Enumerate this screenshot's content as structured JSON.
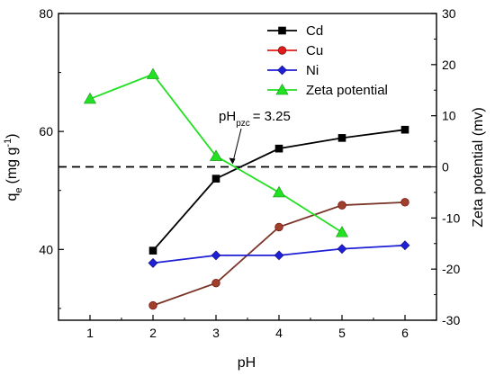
{
  "chart_data": {
    "type": "line",
    "x": [
      1,
      2,
      3,
      4,
      5,
      6
    ],
    "xlabel": "pH",
    "xlim": [
      0.5,
      6.5
    ],
    "ylabel_left": "q",
    "ylabel_left_sub": "e",
    "ylabel_left_unit": "(mg g",
    "ylabel_left_unit_sup": "-1",
    "ylabel_left_unit_end": ")",
    "ylim_left": [
      28,
      80
    ],
    "yticks_left": [
      40,
      60,
      80
    ],
    "ylabel_right": "Zeta potential (mv)",
    "ylim_right": [
      -30,
      30
    ],
    "yticks_right": [
      -30,
      -20,
      -10,
      0,
      10,
      20,
      30
    ],
    "xticks": [
      1,
      2,
      3,
      4,
      5,
      6
    ],
    "legend_position": "top-right",
    "series": [
      {
        "name": "Cd",
        "axis": "left",
        "color": "#000000",
        "marker": "square",
        "x": [
          2,
          3,
          4,
          5,
          6
        ],
        "values": [
          39.8,
          52.0,
          57.1,
          58.9,
          60.3
        ]
      },
      {
        "name": "Cu",
        "axis": "left",
        "color": "#e31a1c",
        "marker": "circle",
        "x": [
          2,
          3,
          4,
          5,
          6
        ],
        "values": [
          30.5,
          34.3,
          43.8,
          47.5,
          48.0
        ]
      },
      {
        "name": "Ni",
        "axis": "left",
        "color": "#1f1fd6",
        "marker": "diamond",
        "x": [
          2,
          3,
          4,
          5,
          6
        ],
        "values": [
          37.7,
          39.0,
          39.0,
          40.1,
          40.7
        ]
      },
      {
        "name": "Zeta potential",
        "axis": "right",
        "color": "#22e022",
        "marker": "triangle",
        "x": [
          1,
          2,
          3,
          4,
          5
        ],
        "values": [
          13.3,
          18.1,
          2.1,
          -5.0,
          -12.8
        ]
      }
    ],
    "reference_line": {
      "axis": "right",
      "value": 0,
      "style": "dashed"
    },
    "annotation": {
      "text_main": "pH",
      "text_sub": "pzc",
      "text_rest": "= 3.25",
      "points_to_x": 3.25
    }
  }
}
